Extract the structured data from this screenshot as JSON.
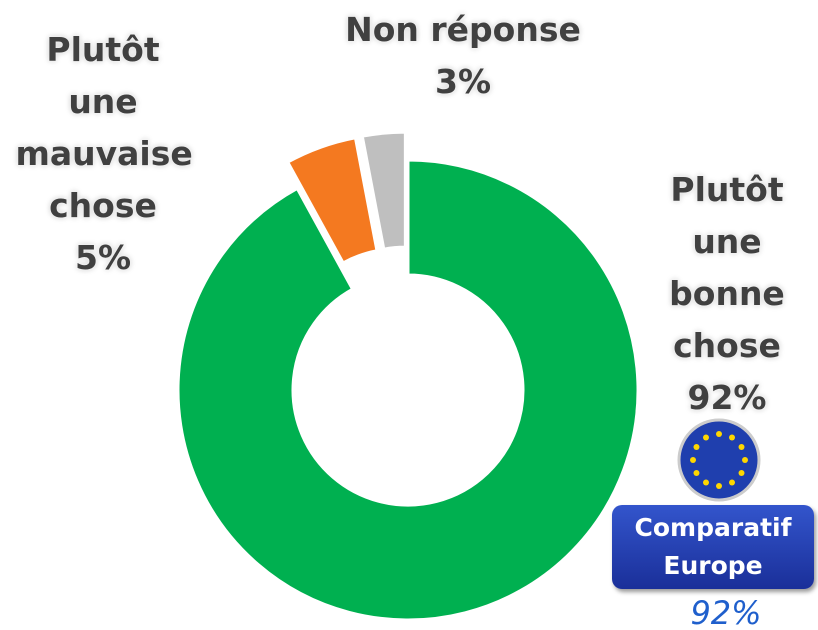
{
  "chart_data": {
    "type": "donut",
    "categories": [
      "Plutôt une bonne chose",
      "Plutôt une mauvaise chose",
      "Non réponse"
    ],
    "values": [
      92,
      5,
      3
    ],
    "value_labels": [
      "92%",
      "5%",
      "3%"
    ],
    "colors": [
      "#00b050",
      "#f47920",
      "#bfbfbf"
    ],
    "annotation": {
      "text": "Comparatif Europe",
      "value_label": "92%"
    }
  }
}
